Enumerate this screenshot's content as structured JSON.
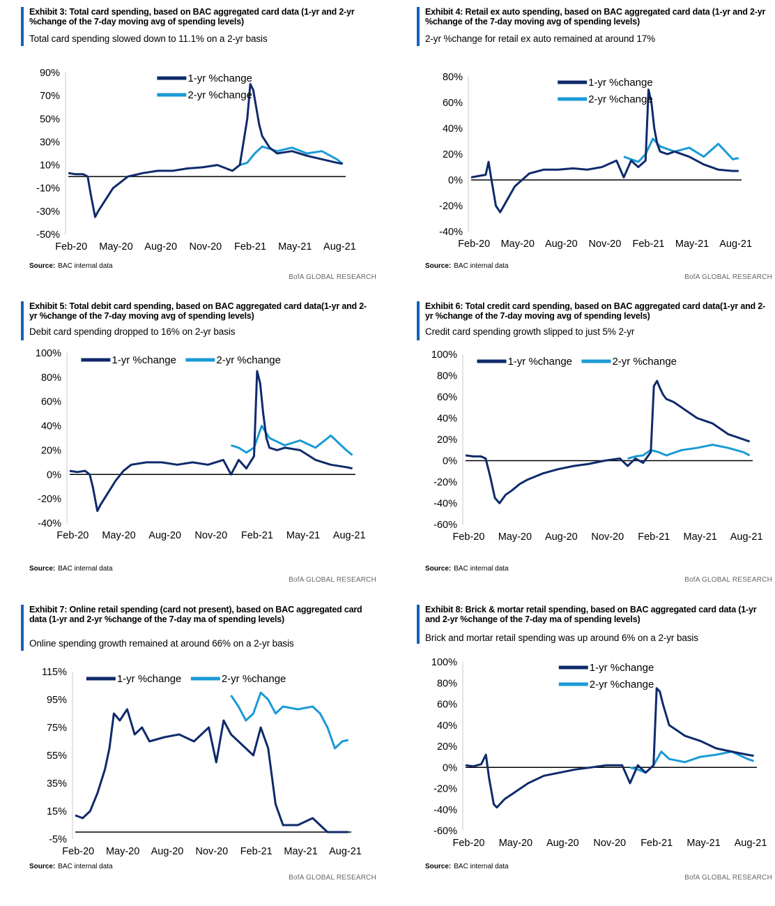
{
  "colors": {
    "series1": "#0f2a6b",
    "series2": "#1a9ad6",
    "accent": "#1560bd",
    "zero": "#000000"
  },
  "panels": [
    {
      "title": "Exhibit 3: Total card spending, based on BAC aggregated card data (1-yr and 2-yr %change of the 7-day moving avg of spending levels)",
      "subtitle": "Total card spending slowed down to 11.1% on a 2-yr basis",
      "source_label": "Source:",
      "source_text": "BAC internal data",
      "brand": "BofA GLOBAL RESEARCH",
      "chart_data": {
        "type": "line",
        "ylim": [
          -50,
          90
        ],
        "y_ticks": [
          "90%",
          "70%",
          "50%",
          "30%",
          "10%",
          "-10%",
          "-30%",
          "-50%"
        ],
        "x_ticks": [
          "Feb-20",
          "May-20",
          "Aug-20",
          "Nov-20",
          "Feb-21",
          "May-21",
          "Aug-21"
        ],
        "legend": "top-center-stacked",
        "series": [
          {
            "name": "1-yr %change",
            "x": [
              0,
              0.5,
              1,
              1.3,
              1.5,
              1.8,
              2,
              2.5,
              3,
              3.5,
              4,
              5,
              6,
              7,
              8,
              9,
              10,
              11,
              11.5,
              12,
              12.2,
              12.4,
              12.6,
              12.8,
              13,
              13.5,
              14,
              15,
              16,
              17,
              18,
              18.4
            ],
            "y": [
              3,
              2,
              2,
              0,
              -15,
              -35,
              -30,
              -20,
              -10,
              -5,
              0,
              3,
              5,
              5,
              7,
              8,
              10,
              5,
              10,
              50,
              80,
              75,
              60,
              45,
              35,
              25,
              20,
              22,
              18,
              15,
              12,
              11
            ]
          },
          {
            "name": "2-yr %change",
            "x": [
              11.5,
              12,
              12.5,
              13,
              14,
              15,
              16,
              17,
              18,
              18.4
            ],
            "y": [
              10,
              12,
              20,
              26,
              22,
              25,
              20,
              22,
              15,
              11
            ]
          }
        ]
      }
    },
    {
      "title": "Exhibit 4: Retail ex auto spending, based on BAC aggregated card data (1-yr and 2-yr %change of the 7-day moving avg of spending levels)",
      "subtitle": "2-yr %change for retail ex auto remained at around 17%",
      "source_label": "Source:",
      "source_text": "BAC internal data",
      "brand": "BofA GLOBAL RESEARCH",
      "chart_data": {
        "type": "line",
        "ylim": [
          -40,
          80
        ],
        "y_ticks": [
          "80%",
          "60%",
          "40%",
          "20%",
          "0%",
          "-20%",
          "-40%"
        ],
        "x_ticks": [
          "Feb-20",
          "May-20",
          "Aug-20",
          "Nov-20",
          "Feb-21",
          "May-21",
          "Aug-21"
        ],
        "legend": "top-center-stacked",
        "series": [
          {
            "name": "1-yr %change",
            "x": [
              0,
              0.5,
              1,
              1.2,
              1.4,
              1.7,
              2,
              2.5,
              3,
              3.5,
              4,
              5,
              6,
              7,
              8,
              9,
              10,
              10.5,
              11,
              11.5,
              12,
              12.2,
              12.4,
              12.6,
              12.8,
              13,
              13.5,
              14,
              15,
              16,
              17,
              18,
              18.4
            ],
            "y": [
              2,
              3,
              4,
              14,
              0,
              -20,
              -25,
              -15,
              -5,
              0,
              5,
              8,
              8,
              9,
              8,
              10,
              15,
              2,
              15,
              10,
              15,
              70,
              60,
              40,
              28,
              22,
              20,
              22,
              18,
              12,
              8,
              7,
              7
            ]
          },
          {
            "name": "2-yr %change",
            "x": [
              10.5,
              11,
              11.5,
              12,
              12.5,
              13,
              14,
              15,
              16,
              17,
              18,
              18.4
            ],
            "y": [
              18,
              16,
              14,
              20,
              32,
              26,
              22,
              25,
              18,
              28,
              16,
              17
            ]
          }
        ]
      }
    },
    {
      "title": "Exhibit 5: Total debit card spending, based on BAC aggregated card data(1-yr and 2-yr %change of the 7-day moving avg of spending levels)",
      "subtitle": "Debit card spending dropped to 16% on 2-yr basis",
      "source_label": "Source:",
      "source_text": "BAC internal data",
      "brand": "BofA GLOBAL RESEARCH",
      "chart_data": {
        "type": "line",
        "ylim": [
          -40,
          100
        ],
        "y_ticks": [
          "100%",
          "80%",
          "60%",
          "40%",
          "20%",
          "0%",
          "-20%",
          "-40%"
        ],
        "x_ticks": [
          "Feb-20",
          "May-20",
          "Aug-20",
          "Nov-20",
          "Feb-21",
          "May-21",
          "Aug-21"
        ],
        "legend": "top-inline",
        "series": [
          {
            "name": "1-yr %change",
            "x": [
              0,
              0.5,
              1,
              1.3,
              1.5,
              1.8,
              2,
              2.5,
              3,
              3.5,
              4,
              5,
              6,
              7,
              8,
              9,
              10,
              10.5,
              11,
              11.5,
              12,
              12.2,
              12.4,
              12.6,
              12.8,
              13,
              13.5,
              14,
              15,
              16,
              17,
              18,
              18.4
            ],
            "y": [
              3,
              2,
              3,
              0,
              -10,
              -30,
              -25,
              -15,
              -5,
              3,
              8,
              10,
              10,
              8,
              10,
              8,
              12,
              0,
              12,
              5,
              15,
              85,
              75,
              50,
              30,
              22,
              20,
              22,
              20,
              12,
              8,
              6,
              5
            ]
          },
          {
            "name": "2-yr %change",
            "x": [
              10.5,
              11,
              11.5,
              12,
              12.5,
              13,
              14,
              15,
              16,
              17,
              18,
              18.4
            ],
            "y": [
              24,
              22,
              18,
              22,
              40,
              30,
              24,
              28,
              22,
              32,
              20,
              16
            ]
          }
        ]
      }
    },
    {
      "title": "Exhibit 6: Total credit card spending, based on BAC aggregated card data(1-yr and 2-yr %change of the 7-day moving avg of spending levels)",
      "subtitle": "Credit card spending growth slipped to just 5% 2-yr",
      "source_label": "Source:",
      "source_text": "BAC internal data",
      "brand": "BofA GLOBAL RESEARCH",
      "chart_data": {
        "type": "line",
        "ylim": [
          -60,
          100
        ],
        "y_ticks": [
          "100%",
          "80%",
          "60%",
          "40%",
          "20%",
          "0%",
          "-20%",
          "-40%",
          "-60%"
        ],
        "x_ticks": [
          "Feb-20",
          "May-20",
          "Aug-20",
          "Nov-20",
          "Feb-21",
          "May-21",
          "Aug-21"
        ],
        "legend": "top-inline",
        "series": [
          {
            "name": "1-yr %change",
            "x": [
              0,
              0.5,
              1,
              1.3,
              1.6,
              1.9,
              2.2,
              2.6,
              3,
              3.5,
              4,
              5,
              6,
              7,
              8,
              9,
              10,
              10.5,
              11,
              11.5,
              12,
              12.2,
              12.4,
              12.6,
              12.8,
              13,
              13.5,
              14,
              15,
              16,
              17,
              18,
              18.4
            ],
            "y": [
              5,
              4,
              4,
              2,
              -15,
              -35,
              -40,
              -32,
              -28,
              -22,
              -18,
              -12,
              -8,
              -5,
              -3,
              0,
              2,
              -5,
              2,
              -2,
              8,
              70,
              75,
              68,
              62,
              58,
              55,
              50,
              40,
              35,
              25,
              20,
              18
            ]
          },
          {
            "name": "2-yr %change",
            "x": [
              10.5,
              11,
              11.5,
              12,
              12.5,
              13,
              14,
              15,
              16,
              17,
              18,
              18.4
            ],
            "y": [
              2,
              4,
              5,
              10,
              8,
              5,
              10,
              12,
              15,
              12,
              8,
              5
            ]
          }
        ]
      }
    },
    {
      "title": "Exhibit 7: Online retail spending (card not present), based on BAC aggregated card data (1-yr and 2-yr %change of the 7-day ma of spending levels)",
      "subtitle": "Online spending growth remained at around 66% on a 2-yr basis",
      "source_label": "Source:",
      "source_text": "BAC internal data",
      "brand": "BofA GLOBAL RESEARCH",
      "chart_data": {
        "type": "line",
        "ylim": [
          -5,
          115
        ],
        "y_ticks": [
          "115%",
          "95%",
          "75%",
          "55%",
          "35%",
          "15%",
          "-5%"
        ],
        "x_ticks": [
          "Feb-20",
          "May-20",
          "Aug-20",
          "Nov-20",
          "Feb-21",
          "May-21",
          "Aug-21"
        ],
        "legend": "top-inline",
        "series": [
          {
            "name": "1-yr %change",
            "x": [
              0,
              0.5,
              1,
              1.5,
              2,
              2.3,
              2.6,
              3,
              3.5,
              4,
              4.5,
              5,
              6,
              7,
              8,
              9,
              9.5,
              10,
              10.5,
              11,
              11.5,
              12,
              12.5,
              13,
              13.5,
              14,
              15,
              16,
              17,
              18,
              18.4
            ],
            "y": [
              12,
              10,
              15,
              28,
              45,
              60,
              85,
              80,
              88,
              70,
              75,
              65,
              68,
              70,
              65,
              75,
              50,
              80,
              70,
              65,
              60,
              55,
              75,
              60,
              20,
              5,
              5,
              10,
              0,
              0,
              0
            ]
          },
          {
            "name": "2-yr %change",
            "x": [
              10.5,
              11,
              11.5,
              12,
              12.5,
              13,
              13.5,
              14,
              15,
              16,
              16.5,
              17,
              17.5,
              18,
              18.4
            ],
            "y": [
              98,
              90,
              80,
              85,
              100,
              95,
              85,
              90,
              88,
              90,
              85,
              75,
              60,
              65,
              66
            ]
          }
        ]
      }
    },
    {
      "title": "Exhibit 8: Brick & mortar retail spending, based on BAC aggregated card data (1-yr and 2-yr %change of the 7-day ma of spending levels)",
      "subtitle": "Brick and mortar retail spending was up around 6% on a 2-yr basis",
      "source_label": "Source:",
      "source_text": "BAC internal data",
      "brand": "BofA GLOBAL RESEARCH",
      "chart_data": {
        "type": "line",
        "ylim": [
          -60,
          100
        ],
        "y_ticks": [
          "100%",
          "80%",
          "60%",
          "40%",
          "20%",
          "0%",
          "-20%",
          "-40%",
          "-60%"
        ],
        "x_ticks": [
          "Feb-20",
          "May-20",
          "Aug-20",
          "Nov-20",
          "Feb-21",
          "May-21",
          "Aug-21"
        ],
        "legend": "top-center-stacked",
        "series": [
          {
            "name": "1-yr %change",
            "x": [
              0,
              0.5,
              1,
              1.3,
              1.5,
              1.8,
              2,
              2.5,
              3,
              3.5,
              4,
              5,
              6,
              7,
              8,
              9,
              10,
              10.5,
              11,
              11.5,
              12,
              12.2,
              12.4,
              12.6,
              12.8,
              13,
              13.5,
              14,
              15,
              16,
              17,
              18,
              18.4
            ],
            "y": [
              2,
              1,
              3,
              12,
              -10,
              -35,
              -38,
              -30,
              -25,
              -20,
              -15,
              -8,
              -5,
              -2,
              0,
              2,
              2,
              -15,
              2,
              -5,
              2,
              75,
              72,
              60,
              50,
              40,
              35,
              30,
              25,
              18,
              15,
              12,
              11
            ]
          },
          {
            "name": "2-yr %change",
            "x": [
              10.5,
              11,
              11.5,
              12,
              12.5,
              13,
              14,
              15,
              16,
              17,
              18,
              18.4
            ],
            "y": [
              0,
              -2,
              -5,
              2,
              15,
              8,
              5,
              10,
              12,
              15,
              8,
              6
            ]
          }
        ]
      }
    }
  ]
}
